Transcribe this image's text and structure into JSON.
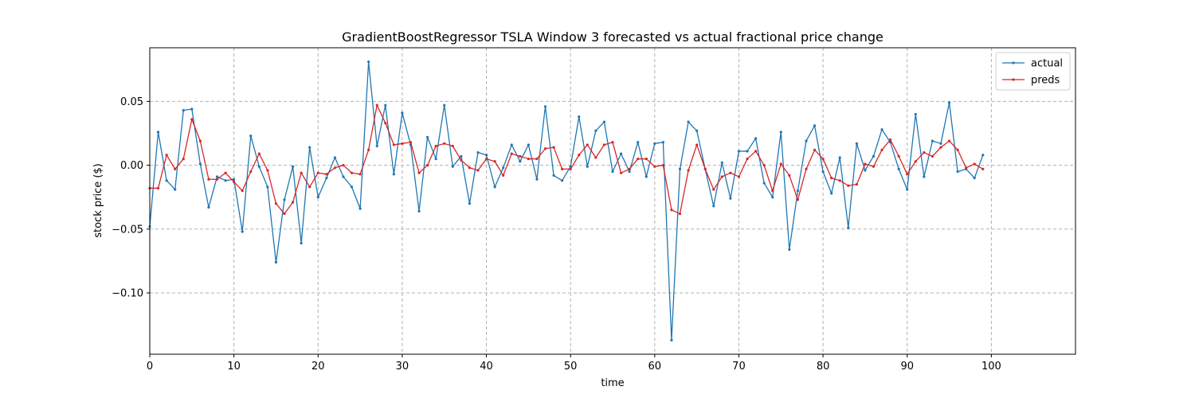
{
  "chart_data": {
    "type": "line",
    "title": "GradientBoostRegressor TSLA Window 3 forecasted vs actual fractional price change",
    "xlabel": "time",
    "ylabel": "stock price ($)",
    "xlim": [
      0,
      110
    ],
    "ylim": [
      -0.148,
      0.092
    ],
    "xticks": [
      0,
      10,
      20,
      30,
      40,
      50,
      60,
      70,
      80,
      90,
      100
    ],
    "yticks": [
      0.05,
      0.0,
      -0.05,
      -0.1
    ],
    "ytick_labels": [
      "0.05",
      "0.00",
      "−0.05",
      "−0.10"
    ],
    "grid": true,
    "legend_position": "top-right",
    "series": [
      {
        "name": "actual",
        "color": "#1f77b4",
        "values": [
          -0.048,
          0.026,
          -0.012,
          -0.019,
          0.043,
          0.044,
          0.001,
          -0.033,
          -0.009,
          -0.012,
          -0.011,
          -0.052,
          0.023,
          -0.001,
          -0.017,
          -0.076,
          -0.027,
          -0.001,
          -0.061,
          0.014,
          -0.025,
          -0.01,
          0.006,
          -0.009,
          -0.017,
          -0.034,
          0.081,
          0.015,
          0.047,
          -0.007,
          0.041,
          0.016,
          -0.036,
          0.022,
          0.005,
          0.047,
          -0.001,
          0.007,
          -0.03,
          0.01,
          0.008,
          -0.017,
          -0.002,
          0.016,
          0.003,
          0.016,
          -0.011,
          0.046,
          -0.008,
          -0.012,
          -0.001,
          0.038,
          -0.001,
          0.027,
          0.034,
          -0.005,
          0.009,
          -0.005,
          0.018,
          -0.009,
          0.017,
          0.018,
          -0.137,
          -0.003,
          0.034,
          0.027,
          -0.003,
          -0.032,
          0.002,
          -0.026,
          0.011,
          0.011,
          0.021,
          -0.014,
          -0.025,
          0.026,
          -0.066,
          -0.02,
          0.019,
          0.031,
          -0.005,
          -0.022,
          0.006,
          -0.049,
          0.017,
          -0.004,
          0.007,
          0.028,
          0.018,
          -0.003,
          -0.019,
          0.04,
          -0.009,
          0.019,
          0.017,
          0.049,
          -0.005,
          -0.003,
          -0.01,
          0.008
        ]
      },
      {
        "name": "preds",
        "color": "#d62728",
        "values": [
          -0.018,
          -0.018,
          0.008,
          -0.003,
          0.005,
          0.036,
          0.019,
          -0.011,
          -0.011,
          -0.006,
          -0.013,
          -0.02,
          -0.005,
          0.009,
          -0.004,
          -0.03,
          -0.038,
          -0.029,
          -0.006,
          -0.017,
          -0.006,
          -0.007,
          -0.002,
          0.0,
          -0.006,
          -0.007,
          0.012,
          0.047,
          0.033,
          0.016,
          0.017,
          0.018,
          -0.006,
          0.0,
          0.015,
          0.017,
          0.015,
          0.004,
          -0.002,
          -0.004,
          0.005,
          0.003,
          -0.008,
          0.009,
          0.007,
          0.005,
          0.005,
          0.013,
          0.014,
          -0.003,
          -0.003,
          0.008,
          0.016,
          0.006,
          0.016,
          0.018,
          -0.006,
          -0.003,
          0.005,
          0.005,
          -0.001,
          0.0,
          -0.035,
          -0.038,
          -0.004,
          0.016,
          -0.003,
          -0.019,
          -0.009,
          -0.006,
          -0.009,
          0.005,
          0.011,
          0.0,
          -0.02,
          0.001,
          -0.008,
          -0.027,
          -0.003,
          0.012,
          0.005,
          -0.01,
          -0.012,
          -0.016,
          -0.015,
          0.001,
          -0.001,
          0.012,
          0.02,
          0.007,
          -0.007,
          0.003,
          0.01,
          0.007,
          0.014,
          0.019,
          0.012,
          -0.002,
          0.001,
          -0.003
        ]
      }
    ]
  }
}
